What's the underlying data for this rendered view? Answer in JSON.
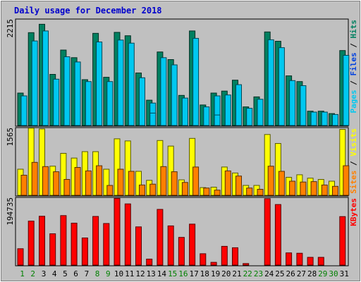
{
  "chart_data": {
    "type": "bar",
    "title": "Daily usage for December 2018",
    "categories": [
      "1",
      "2",
      "3",
      "4",
      "5",
      "6",
      "7",
      "8",
      "9",
      "10",
      "11",
      "12",
      "13",
      "14",
      "15",
      "16",
      "17",
      "18",
      "19",
      "20",
      "21",
      "22",
      "23",
      "24",
      "25",
      "26",
      "27",
      "28",
      "29",
      "30",
      "31"
    ],
    "weekend_days": [
      "1",
      "2",
      "8",
      "9",
      "15",
      "16",
      "22",
      "23",
      "29",
      "30"
    ],
    "panels": [
      {
        "id": "hits",
        "max_label": "2215",
        "ymax": 2215,
        "legend": [
          "Pages",
          "Files",
          "Hits"
        ],
        "legend_colors": [
          "#00c8f0",
          "#0040e0",
          "#008060"
        ],
        "series": [
          {
            "name": "Hits",
            "color": "#008060",
            "values": [
              680,
              1945,
              2120,
              1070,
              1580,
              1420,
              960,
              1930,
              1010,
              1950,
              1880,
              1100,
              530,
              1540,
              1380,
              630,
              1980,
              430,
              680,
              720,
              950,
              390,
              600,
              1960,
              1765,
              1040,
              920,
              300,
              300,
              250,
              1570
            ]
          },
          {
            "name": "Files",
            "color": "#00c8f0",
            "values": [
              620,
              1770,
              1980,
              970,
              1440,
              1330,
              920,
              1750,
              920,
              1790,
              1725,
              1000,
              470,
              1420,
              1270,
              575,
              1825,
              390,
              620,
              640,
              855,
              360,
              550,
              1795,
              1630,
              940,
              835,
              280,
              280,
              230,
              1470
            ]
          },
          {
            "name": "Pages",
            "color": "#00c8f0",
            "values": [
              0,
              0,
              0,
              0,
              0,
              0,
              0,
              0,
              0,
              0,
              0,
              0,
              260,
              0,
              0,
              0,
              0,
              0,
              220,
              0,
              0,
              0,
              0,
              0,
              0,
              0,
              0,
              0,
              0,
              0,
              0
            ]
          }
        ]
      },
      {
        "id": "visits",
        "max_label": "1565",
        "ymax": 1565,
        "legend": [
          "Sites",
          "Visits"
        ],
        "legend_colors": [
          "#ff8000",
          "#ffff00"
        ],
        "series": [
          {
            "name": "Visits",
            "color": "#ffff00",
            "values": [
              610,
              1570,
              1550,
              680,
              980,
              870,
              1020,
              1020,
              610,
              1320,
              1270,
              560,
              350,
              1280,
              1150,
              360,
              1330,
              180,
              190,
              660,
              520,
              230,
              230,
              1420,
              1210,
              420,
              480,
              400,
              370,
              330,
              1540
            ]
          },
          {
            "name": "Sites",
            "color": "#ff8000",
            "values": [
              470,
              770,
              670,
              550,
              370,
              650,
              570,
              690,
              230,
              610,
              560,
              240,
              260,
              670,
              550,
              300,
              660,
              170,
              120,
              570,
              450,
              170,
              140,
              680,
              560,
              330,
              310,
              320,
              240,
              210,
              690
            ]
          }
        ]
      },
      {
        "id": "kbytes",
        "max_label": "194735",
        "ymax": 194735,
        "legend": [
          "KBytes"
        ],
        "legend_colors": [
          "#ff0000"
        ],
        "series": [
          {
            "name": "KBytes",
            "color": "#ff0000",
            "values": [
              47500,
              128000,
              142000,
              91000,
              144000,
              122000,
              79000,
              141500,
              121000,
              194000,
              178000,
              111000,
              17500,
              162000,
              114000,
              80500,
              119000,
              33000,
              8000,
              54500,
              50500,
              4500,
              0,
              193000,
              176000,
              35500,
              34500,
              22500,
              22500,
              0,
              141000
            ]
          }
        ]
      }
    ]
  }
}
